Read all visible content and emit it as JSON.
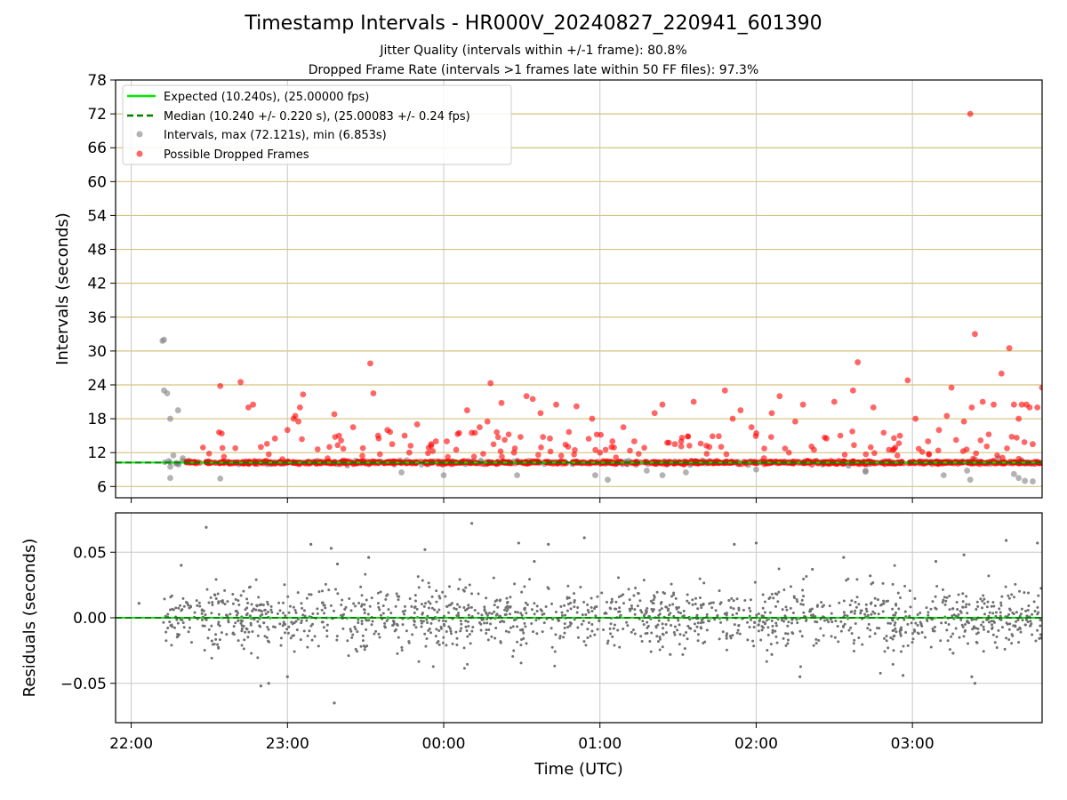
{
  "title": "Timestamp Intervals - HR000V_20240827_220941_601390",
  "subtitle_1": "Jitter Quality (intervals within +/-1 frame): 80.8%",
  "subtitle_2": "Dropped Frame Rate (intervals >1 frames late within 50 FF files): 97.3%",
  "colors": {
    "expected_line": "#00e600",
    "median_line": "#008000",
    "intervals_points": "#808080",
    "dropped_points": "#ff0000",
    "top_grid": "#d6c27e",
    "bottom_grid": "#c8c8c8",
    "residual_points": "#707070"
  },
  "chart_data": [
    {
      "type": "scatter",
      "panel": "top",
      "title": "",
      "xlabel": "",
      "ylabel": "Intervals (seconds)",
      "xlim_hours": [
        21.9,
        27.83
      ],
      "ylim": [
        4,
        78
      ],
      "yticks": [
        6,
        12,
        18,
        24,
        30,
        36,
        42,
        48,
        54,
        60,
        66,
        72,
        78
      ],
      "grid": "horizontal",
      "legend_position": "top-left",
      "legend": [
        {
          "label": "Expected (10.240s), (25.00000 fps)",
          "style": "solid-line"
        },
        {
          "label": "Median (10.240 +/- 0.220 s), (25.00083 +/- 0.24 fps)",
          "style": "dashed-line"
        },
        {
          "label": "Intervals, max (72.121s), min (6.853s)",
          "style": "marker-gray"
        },
        {
          "label": "Possible Dropped Frames",
          "style": "marker-red"
        }
      ],
      "expected_interval": 10.24,
      "median_interval": 10.24,
      "series": [
        {
          "name": "Intervals",
          "approximate_count": 1900,
          "typical_value": 10.24,
          "points": [
            [
              22.2,
              31.8
            ],
            [
              22.21,
              32.0
            ],
            [
              22.21,
              23.0
            ],
            [
              22.23,
              22.5
            ],
            [
              22.25,
              18.0
            ],
            [
              22.3,
              19.5
            ],
            [
              22.33,
              11.0
            ],
            [
              22.27,
              11.5
            ],
            [
              22.25,
              9.5
            ],
            [
              22.25,
              7.5
            ],
            [
              22.57,
              7.4
            ],
            [
              23.0,
              10.2
            ],
            [
              23.73,
              8.5
            ],
            [
              24.0,
              8.0
            ],
            [
              24.47,
              8.0
            ],
            [
              24.97,
              8.0
            ],
            [
              25.05,
              7.2
            ],
            [
              25.3,
              8.8
            ],
            [
              25.4,
              8.0
            ],
            [
              25.55,
              8.5
            ],
            [
              26.0,
              9.0
            ],
            [
              26.7,
              8.6
            ],
            [
              26.7,
              8.8
            ],
            [
              27.2,
              8.0
            ],
            [
              27.35,
              8.8
            ],
            [
              27.37,
              7.2
            ],
            [
              27.5,
              10.0
            ],
            [
              27.55,
              11.0
            ],
            [
              27.65,
              8.2
            ],
            [
              27.68,
              7.5
            ],
            [
              27.72,
              7.0
            ],
            [
              27.77,
              6.9
            ]
          ]
        },
        {
          "name": "Possible Dropped Frames",
          "range_hours": [
            22.35,
            27.83
          ],
          "points": [
            [
              22.57,
              23.8
            ],
            [
              22.7,
              24.5
            ],
            [
              22.78,
              20.5
            ],
            [
              22.75,
              20.0
            ],
            [
              22.83,
              13.0
            ],
            [
              22.92,
              14.5
            ],
            [
              23.0,
              16.0
            ],
            [
              23.04,
              18.0
            ],
            [
              23.07,
              17.5
            ],
            [
              23.1,
              22.3
            ],
            [
              23.05,
              18.5
            ],
            [
              23.08,
              20.0
            ],
            [
              23.3,
              18.8
            ],
            [
              23.33,
              15.0
            ],
            [
              23.42,
              16.5
            ],
            [
              23.53,
              27.8
            ],
            [
              23.55,
              22.5
            ],
            [
              23.58,
              15.0
            ],
            [
              23.64,
              16.0
            ],
            [
              23.67,
              13.5
            ],
            [
              23.75,
              15.0
            ],
            [
              23.78,
              12.0
            ],
            [
              23.83,
              17.0
            ],
            [
              23.92,
              13.5
            ],
            [
              23.95,
              14.0
            ],
            [
              24.02,
              14.0
            ],
            [
              24.08,
              12.5
            ],
            [
              24.15,
              19.5
            ],
            [
              24.18,
              15.5
            ],
            [
              24.23,
              16.5
            ],
            [
              24.28,
              17.5
            ],
            [
              24.3,
              24.3
            ],
            [
              24.37,
              20.8
            ],
            [
              24.45,
              12.0
            ],
            [
              24.53,
              22.0
            ],
            [
              24.57,
              21.5
            ],
            [
              24.62,
              19.0
            ],
            [
              24.68,
              14.5
            ],
            [
              24.72,
              20.5
            ],
            [
              24.85,
              20.2
            ],
            [
              24.95,
              18.0
            ],
            [
              25.0,
              12.0
            ],
            [
              25.08,
              14.0
            ],
            [
              25.15,
              16.5
            ],
            [
              25.22,
              14.0
            ],
            [
              25.35,
              19.0
            ],
            [
              25.4,
              20.5
            ],
            [
              25.48,
              13.5
            ],
            [
              25.52,
              14.0
            ],
            [
              25.6,
              21.0
            ],
            [
              25.7,
              13.0
            ],
            [
              25.8,
              23.0
            ],
            [
              25.85,
              18.0
            ],
            [
              25.9,
              19.5
            ],
            [
              25.97,
              16.5
            ],
            [
              26.05,
              11.0
            ],
            [
              26.1,
              19.0
            ],
            [
              26.15,
              22.0
            ],
            [
              26.25,
              17.5
            ],
            [
              26.3,
              20.5
            ],
            [
              26.37,
              12.5
            ],
            [
              26.45,
              14.5
            ],
            [
              26.5,
              21.0
            ],
            [
              26.62,
              23.0
            ],
            [
              26.65,
              28.0
            ],
            [
              26.75,
              20.0
            ],
            [
              26.85,
              12.5
            ],
            [
              26.92,
              15.0
            ],
            [
              26.97,
              24.8
            ],
            [
              27.02,
              18.0
            ],
            [
              27.1,
              14.0
            ],
            [
              27.17,
              16.0
            ],
            [
              27.22,
              18.5
            ],
            [
              27.25,
              23.5
            ],
            [
              27.33,
              17.5
            ],
            [
              27.37,
              72.0
            ],
            [
              27.38,
              20.0
            ],
            [
              27.4,
              33.0
            ],
            [
              27.45,
              21.0
            ],
            [
              27.52,
              20.5
            ],
            [
              27.57,
              26.0
            ],
            [
              27.62,
              30.5
            ],
            [
              27.65,
              20.5
            ],
            [
              27.68,
              18.0
            ],
            [
              27.7,
              20.5
            ],
            [
              27.73,
              20.5
            ],
            [
              27.75,
              20.0
            ],
            [
              27.77,
              13.5
            ],
            [
              27.8,
              20.0
            ],
            [
              27.83,
              23.5
            ]
          ]
        }
      ]
    },
    {
      "type": "scatter",
      "panel": "bottom",
      "title": "",
      "xlabel": "Time (UTC)",
      "ylabel": "Residuals (seconds)",
      "xlim_hours": [
        21.9,
        27.83
      ],
      "x_tick_labels": [
        "22:00",
        "23:00",
        "00:00",
        "01:00",
        "02:00",
        "03:00"
      ],
      "x_tick_hours": [
        22,
        23,
        24,
        25,
        26,
        27
      ],
      "ylim": [
        -0.08,
        0.08
      ],
      "yticks": [
        -0.05,
        0.0,
        0.05
      ],
      "ytick_labels": [
        "−0.05",
        "0.00",
        "0.05"
      ],
      "grid": true,
      "zero_line": 0.0,
      "series": [
        {
          "name": "Residuals",
          "approximate_count": 1900,
          "typical_spread": 0.012,
          "range": [
            -0.065,
            0.08
          ],
          "outliers": [
            [
              22.05,
              0.011
            ],
            [
              22.32,
              0.04
            ],
            [
              22.48,
              0.069
            ],
            [
              22.83,
              -0.052
            ],
            [
              22.88,
              -0.05
            ],
            [
              23.0,
              -0.045
            ],
            [
              23.15,
              0.056
            ],
            [
              23.28,
              0.053
            ],
            [
              23.3,
              -0.065
            ],
            [
              23.32,
              0.041
            ],
            [
              23.52,
              0.046
            ],
            [
              23.88,
              0.052
            ],
            [
              24.18,
              0.072
            ],
            [
              24.48,
              0.057
            ],
            [
              24.67,
              0.056
            ],
            [
              24.58,
              0.043
            ],
            [
              24.9,
              0.061
            ],
            [
              25.45,
              -0.028
            ],
            [
              25.86,
              0.056
            ],
            [
              26.0,
              0.057
            ],
            [
              26.1,
              -0.028
            ],
            [
              26.28,
              -0.045
            ],
            [
              26.36,
              0.037
            ],
            [
              26.56,
              0.046
            ],
            [
              26.73,
              0.032
            ],
            [
              26.94,
              -0.044
            ],
            [
              27.15,
              0.043
            ],
            [
              27.26,
              -0.027
            ],
            [
              27.33,
              0.048
            ],
            [
              27.38,
              -0.045
            ],
            [
              27.4,
              -0.05
            ],
            [
              27.6,
              0.059
            ],
            [
              27.8,
              0.057
            ]
          ]
        }
      ]
    }
  ]
}
